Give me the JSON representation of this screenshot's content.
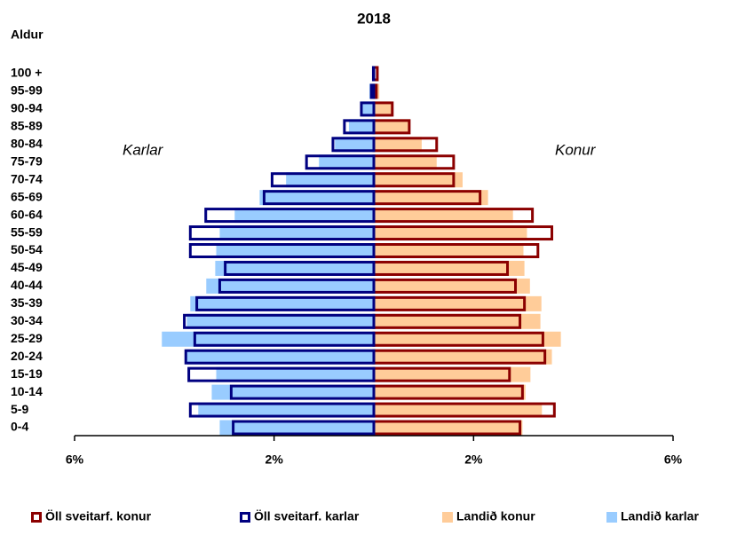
{
  "chart_data": {
    "type": "pyramid",
    "title": "2018",
    "y_label": "Aldur",
    "left_label": "Karlar",
    "right_label": "Konur",
    "categories": [
      "0-4",
      "5-9",
      "10-14",
      "15-19",
      "20-24",
      "25-29",
      "30-34",
      "35-39",
      "40-44",
      "45-49",
      "50-54",
      "55-59",
      "60-64",
      "65-69",
      "70-74",
      "75-79",
      "80-84",
      "85-89",
      "90-94",
      "95-99",
      "100 +"
    ],
    "xlim": [
      0,
      6
    ],
    "xticks": [
      {
        "value": 2,
        "label": "2%"
      },
      {
        "value": 6,
        "label": "6%"
      }
    ],
    "series": [
      {
        "name": "Öll sveitarf. konur",
        "color": "#8b0000",
        "side": "right",
        "style": "outline",
        "values": [
          2.93,
          3.62,
          2.98,
          2.72,
          3.43,
          3.39,
          2.93,
          3.02,
          2.84,
          2.68,
          3.29,
          3.57,
          3.18,
          2.13,
          1.6,
          1.6,
          1.26,
          0.71,
          0.37,
          0.05,
          0.07
        ]
      },
      {
        "name": "Öll sveitarf. karlar",
        "color": "#000080",
        "side": "left",
        "style": "outline",
        "values": [
          2.82,
          3.68,
          2.86,
          3.71,
          3.77,
          3.59,
          3.8,
          3.55,
          3.09,
          2.98,
          3.68,
          3.68,
          3.37,
          2.2,
          2.04,
          1.35,
          0.82,
          0.59,
          0.25,
          0.05,
          0.01
        ]
      },
      {
        "name": "Landið konur",
        "color": "#ffcc99",
        "side": "right",
        "style": "fill",
        "values": [
          2.98,
          3.37,
          3.04,
          3.14,
          3.57,
          3.75,
          3.34,
          3.36,
          3.13,
          3.02,
          3.0,
          3.07,
          2.79,
          2.29,
          1.78,
          1.26,
          0.96,
          0.73,
          0.36,
          0.11,
          0.02
        ]
      },
      {
        "name": "Landið karlar",
        "color": "#99ccff",
        "side": "left",
        "style": "fill",
        "values": [
          3.09,
          3.52,
          3.25,
          3.16,
          3.75,
          4.25,
          3.75,
          3.68,
          3.36,
          3.18,
          3.16,
          3.09,
          2.79,
          2.29,
          1.76,
          1.1,
          0.78,
          0.5,
          0.23,
          0.09,
          0.01
        ]
      }
    ]
  }
}
